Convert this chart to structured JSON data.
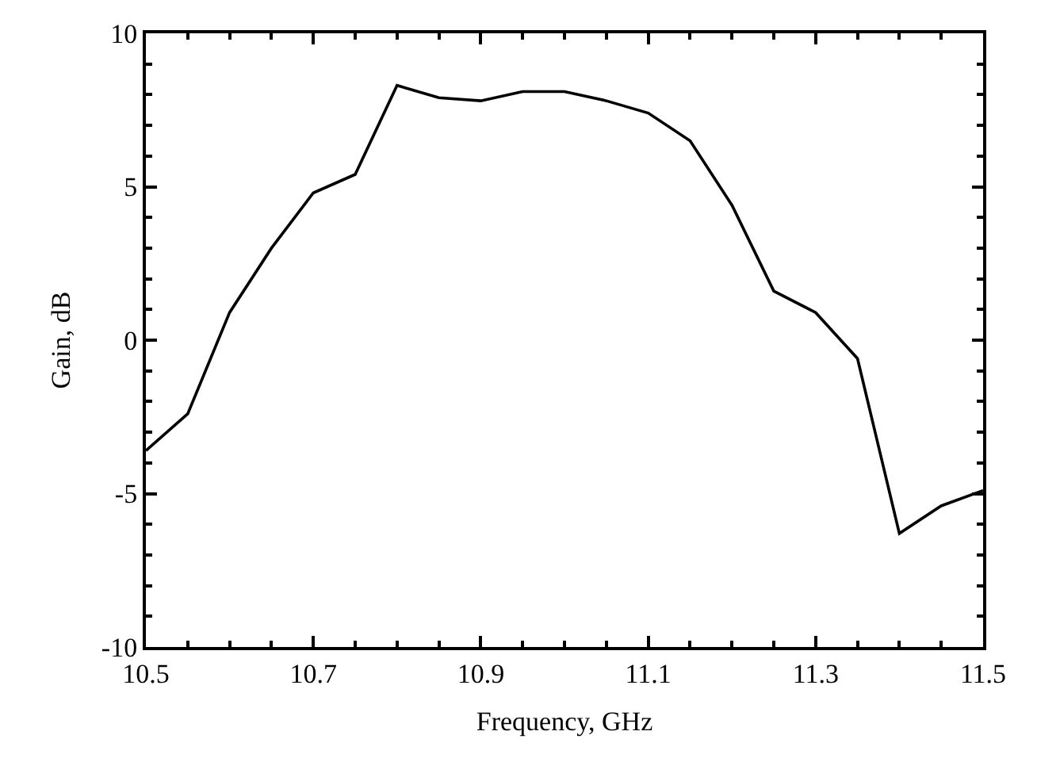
{
  "chart_data": {
    "type": "line",
    "xlabel": "Frequency, GHz",
    "ylabel": "Gain, dB",
    "x": [
      10.5,
      10.55,
      10.6,
      10.65,
      10.7,
      10.75,
      10.8,
      10.85,
      10.9,
      10.95,
      11.0,
      11.05,
      11.1,
      11.15,
      11.2,
      11.25,
      11.3,
      11.35,
      11.4,
      11.45,
      11.5
    ],
    "series": [
      {
        "color": "#000000",
        "values": [
          -3.6,
          -2.4,
          0.9,
          3.0,
          4.8,
          5.4,
          8.3,
          7.9,
          7.8,
          8.1,
          8.1,
          7.8,
          7.4,
          6.5,
          4.4,
          1.6,
          0.9,
          -0.6,
          -6.3,
          -5.4,
          -4.9
        ]
      }
    ],
    "xlim": [
      10.5,
      11.5
    ],
    "xticks": [
      10.5,
      10.7,
      10.9,
      11.1,
      11.3,
      11.5
    ],
    "ylim": [
      -10,
      10
    ],
    "yticks": [
      -10,
      -5,
      0,
      5,
      10
    ],
    "legend": false,
    "marker": "none",
    "line_style": "solid"
  }
}
